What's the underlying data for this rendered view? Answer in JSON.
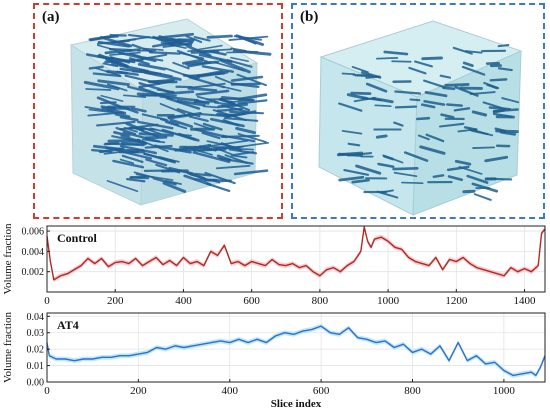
{
  "panels": [
    {
      "label": "(a)",
      "border_color": "#d43b2f",
      "fiber_color": "#1f5f95"
    },
    {
      "label": "(b)",
      "border_color": "#3d78c8",
      "fiber_color": "#1e5f8c"
    }
  ],
  "chart_data": [
    {
      "type": "line",
      "annotation": "Control",
      "xlabel": "",
      "ylabel": "Volume fraction",
      "xlim": [
        0,
        1460
      ],
      "ylim": [
        0,
        0.0065
      ],
      "xticks": [
        0,
        200,
        400,
        600,
        800,
        1000,
        1200,
        1400
      ],
      "yticks": [
        0.002,
        0.004,
        0.006
      ],
      "ytick_labels": [
        "0.002",
        "0.004",
        "0.006"
      ],
      "grid": true,
      "line_color": "#b22a1e",
      "band_color": "#f4b8c4",
      "x": [
        0,
        10,
        20,
        40,
        60,
        80,
        100,
        120,
        140,
        160,
        180,
        200,
        220,
        240,
        260,
        280,
        300,
        320,
        340,
        360,
        380,
        400,
        420,
        440,
        460,
        480,
        500,
        520,
        540,
        560,
        580,
        600,
        620,
        640,
        660,
        680,
        700,
        720,
        740,
        760,
        780,
        800,
        820,
        840,
        860,
        880,
        900,
        920,
        930,
        940,
        950,
        960,
        980,
        1000,
        1020,
        1040,
        1060,
        1080,
        1100,
        1120,
        1140,
        1160,
        1180,
        1200,
        1220,
        1240,
        1260,
        1280,
        1300,
        1320,
        1340,
        1360,
        1380,
        1400,
        1420,
        1440,
        1450,
        1460
      ],
      "y": [
        0.0055,
        0.003,
        0.0012,
        0.0016,
        0.0018,
        0.0022,
        0.0026,
        0.0033,
        0.0028,
        0.0033,
        0.0025,
        0.0029,
        0.003,
        0.0028,
        0.0033,
        0.0026,
        0.003,
        0.0034,
        0.0027,
        0.0031,
        0.0026,
        0.0034,
        0.0028,
        0.003,
        0.0026,
        0.004,
        0.0036,
        0.0046,
        0.0028,
        0.003,
        0.0026,
        0.003,
        0.0028,
        0.0026,
        0.0032,
        0.0027,
        0.0026,
        0.0028,
        0.0024,
        0.0026,
        0.002,
        0.0016,
        0.0022,
        0.0024,
        0.002,
        0.0026,
        0.003,
        0.004,
        0.0064,
        0.005,
        0.0044,
        0.0052,
        0.0054,
        0.005,
        0.0044,
        0.0042,
        0.0034,
        0.003,
        0.0028,
        0.0026,
        0.0034,
        0.0022,
        0.0032,
        0.003,
        0.0034,
        0.0028,
        0.0024,
        0.0022,
        0.002,
        0.0018,
        0.0016,
        0.0024,
        0.002,
        0.0023,
        0.002,
        0.0026,
        0.0058,
        0.0062
      ]
    },
    {
      "type": "line",
      "annotation": "AT4",
      "xlabel": "Slice index",
      "ylabel": "Volume fraction",
      "xlim": [
        0,
        1090
      ],
      "ylim": [
        0,
        0.042
      ],
      "xticks": [
        0,
        200,
        400,
        600,
        800,
        1000
      ],
      "yticks": [
        0.0,
        0.01,
        0.02,
        0.03,
        0.04
      ],
      "ytick_labels": [
        "0.00",
        "0.01",
        "0.02",
        "0.03",
        "0.04"
      ],
      "grid": true,
      "line_color": "#2f6fd0",
      "band_color": "#a9e0f2",
      "x": [
        0,
        5,
        20,
        40,
        60,
        80,
        100,
        120,
        140,
        160,
        180,
        200,
        220,
        240,
        260,
        280,
        300,
        320,
        340,
        360,
        380,
        400,
        420,
        440,
        460,
        480,
        500,
        520,
        540,
        560,
        580,
        600,
        620,
        640,
        660,
        680,
        700,
        720,
        740,
        760,
        780,
        800,
        820,
        840,
        860,
        880,
        900,
        920,
        940,
        960,
        980,
        1000,
        1020,
        1040,
        1060,
        1070,
        1080,
        1090
      ],
      "y": [
        0.024,
        0.016,
        0.014,
        0.014,
        0.013,
        0.014,
        0.014,
        0.015,
        0.015,
        0.016,
        0.016,
        0.017,
        0.018,
        0.021,
        0.02,
        0.022,
        0.021,
        0.022,
        0.023,
        0.024,
        0.025,
        0.024,
        0.026,
        0.024,
        0.026,
        0.024,
        0.028,
        0.03,
        0.029,
        0.031,
        0.032,
        0.034,
        0.03,
        0.029,
        0.033,
        0.027,
        0.026,
        0.024,
        0.025,
        0.021,
        0.023,
        0.018,
        0.02,
        0.017,
        0.022,
        0.013,
        0.024,
        0.013,
        0.016,
        0.011,
        0.012,
        0.007,
        0.004,
        0.005,
        0.006,
        0.004,
        0.009,
        0.016
      ]
    }
  ]
}
